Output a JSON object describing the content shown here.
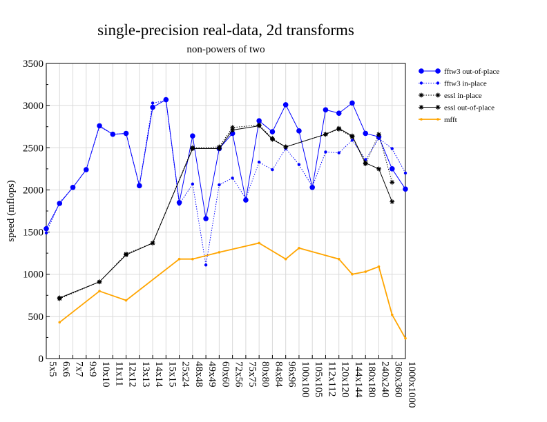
{
  "chart_data": {
    "type": "line",
    "title": "single-precision real-data, 2d transforms",
    "subtitle": "non-powers of two",
    "xlabel": "",
    "ylabel": "speed (mflops)",
    "ylim": [
      0,
      3500
    ],
    "yticks": [
      0,
      500,
      1000,
      1500,
      2000,
      2500,
      3000,
      3500
    ],
    "grid": true,
    "legend_position": "right",
    "categories": [
      "5x5",
      "6x6",
      "7x7",
      "9x9",
      "10x10",
      "11x11",
      "12x12",
      "13x13",
      "14x14",
      "15x15",
      "25x24",
      "48x48",
      "49x49",
      "60x60",
      "72x56",
      "75x75",
      "80x80",
      "84x84",
      "96x96",
      "100x100",
      "105x105",
      "112x112",
      "120x120",
      "144x144",
      "180x180",
      "240x240",
      "360x360",
      "1000x1000"
    ],
    "series": [
      {
        "name": "fftw3 out-of-place",
        "color": "#0000ff",
        "line": "solid",
        "marker": "circle",
        "values": [
          1540,
          1840,
          2030,
          2240,
          2760,
          2660,
          2670,
          2050,
          2980,
          3070,
          1850,
          2640,
          1660,
          2490,
          2670,
          1880,
          2820,
          2690,
          3010,
          2700,
          2030,
          2950,
          2910,
          3030,
          2670,
          2630,
          2250,
          2010
        ]
      },
      {
        "name": "fftw3 in-place",
        "color": "#0000ff",
        "line": "dotted",
        "marker": "dot",
        "values": [
          1490,
          1850,
          2030,
          2240,
          2750,
          2660,
          2670,
          2050,
          3030,
          3060,
          1830,
          2070,
          1110,
          2060,
          2140,
          1900,
          2330,
          2240,
          2490,
          2300,
          2040,
          2450,
          2440,
          2590,
          2360,
          2610,
          2490,
          2200
        ]
      },
      {
        "name": "essl in-place",
        "color": "#000000",
        "line": "dotted",
        "marker": "star",
        "values": [
          null,
          710,
          null,
          null,
          910,
          null,
          1240,
          null,
          1370,
          null,
          null,
          2500,
          null,
          2510,
          2740,
          null,
          2770,
          2610,
          2510,
          null,
          null,
          2660,
          2720,
          2630,
          2310,
          2660,
          2090,
          null
        ]
      },
      {
        "name": "essl out-of-place",
        "color": "#000000",
        "line": "solid",
        "marker": "star",
        "values": [
          null,
          720,
          null,
          null,
          910,
          null,
          1230,
          null,
          1370,
          null,
          null,
          2490,
          null,
          2490,
          2710,
          null,
          2760,
          2600,
          2510,
          null,
          null,
          2660,
          2730,
          2640,
          2320,
          2250,
          1860,
          null
        ]
      },
      {
        "name": "mfft",
        "color": "#ffa500",
        "line": "solid",
        "marker": "small",
        "values": [
          null,
          430,
          null,
          null,
          800,
          null,
          690,
          null,
          null,
          null,
          1180,
          1180,
          null,
          1260,
          null,
          null,
          1370,
          null,
          1180,
          1310,
          null,
          null,
          1180,
          1000,
          1030,
          1090,
          520,
          240
        ]
      }
    ]
  }
}
